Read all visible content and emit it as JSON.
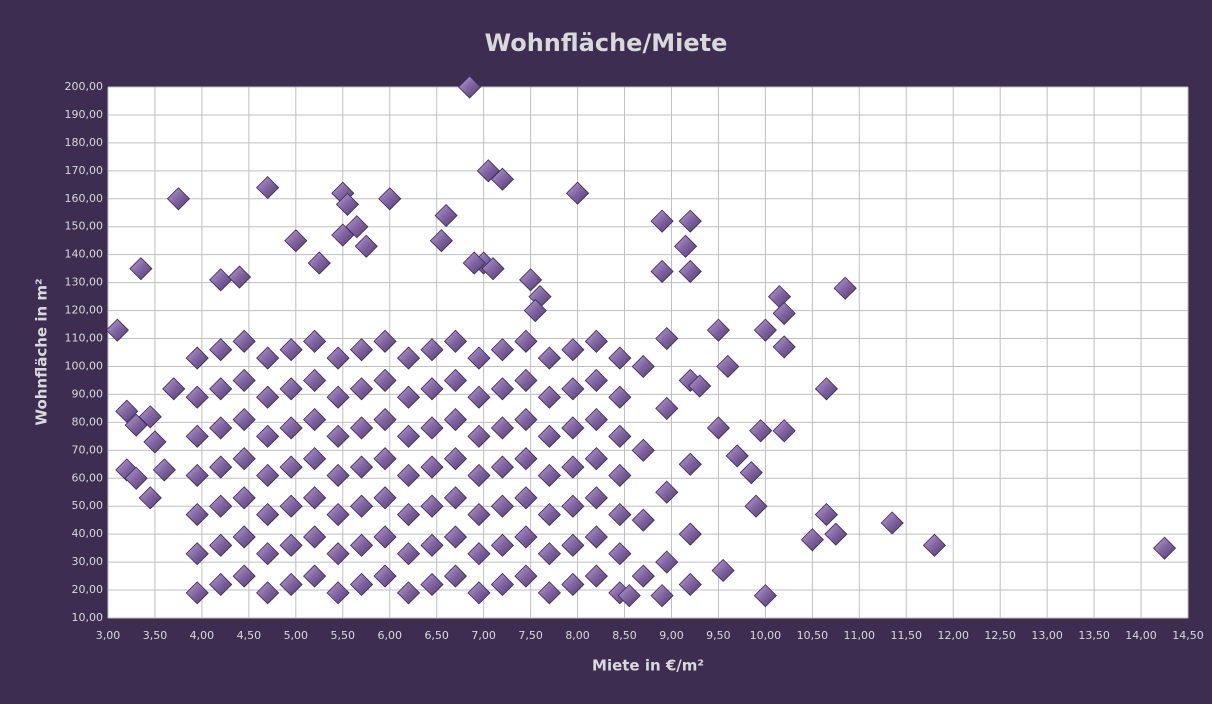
{
  "chart_data": {
    "type": "scatter",
    "title": "Wohnfläche/Miete",
    "x_label": "Miete in €/m²",
    "y_label": "Wohnfläche in m²",
    "color": "#8064a2",
    "grid": true,
    "xlim": [
      3,
      14.5
    ],
    "ylim": [
      10,
      200
    ],
    "xticks": [
      {
        "value": 3,
        "label": "3,00"
      },
      {
        "value": 3.5,
        "label": "3,50"
      },
      {
        "value": 4,
        "label": "4,00"
      },
      {
        "value": 4.5,
        "label": "4,50"
      },
      {
        "value": 5,
        "label": "5,00"
      },
      {
        "value": 5.5,
        "label": "5,50"
      },
      {
        "value": 6,
        "label": "6,00"
      },
      {
        "value": 6.5,
        "label": "6,50"
      },
      {
        "value": 7,
        "label": "7,00"
      },
      {
        "value": 7.5,
        "label": "7,50"
      },
      {
        "value": 8,
        "label": "8,00"
      },
      {
        "value": 8.5,
        "label": "8,50"
      },
      {
        "value": 9,
        "label": "9,00"
      },
      {
        "value": 9.5,
        "label": "9,50"
      },
      {
        "value": 10,
        "label": "10,00"
      },
      {
        "value": 10.5,
        "label": "10,50"
      },
      {
        "value": 11,
        "label": "11,00"
      },
      {
        "value": 11.5,
        "label": "11,50"
      },
      {
        "value": 12,
        "label": "12,00"
      },
      {
        "value": 12.5,
        "label": "12,50"
      },
      {
        "value": 13,
        "label": "13,00"
      },
      {
        "value": 13.5,
        "label": "13,50"
      },
      {
        "value": 14,
        "label": "14,00"
      },
      {
        "value": 14.5,
        "label": "14,50"
      }
    ],
    "yticks": [
      {
        "value": 10,
        "label": "10,00"
      },
      {
        "value": 20,
        "label": "20,00"
      },
      {
        "value": 30,
        "label": "30,00"
      },
      {
        "value": 40,
        "label": "40,00"
      },
      {
        "value": 50,
        "label": "50,00"
      },
      {
        "value": 60,
        "label": "60,00"
      },
      {
        "value": 70,
        "label": "70,00"
      },
      {
        "value": 80,
        "label": "80,00"
      },
      {
        "value": 90,
        "label": "90,00"
      },
      {
        "value": 100,
        "label": "100,00"
      },
      {
        "value": 110,
        "label": "110,00"
      },
      {
        "value": 120,
        "label": "120,00"
      },
      {
        "value": 130,
        "label": "130,00"
      },
      {
        "value": 140,
        "label": "140,00"
      },
      {
        "value": 150,
        "label": "150,00"
      },
      {
        "value": 160,
        "label": "160,00"
      },
      {
        "value": 170,
        "label": "170,00"
      },
      {
        "value": 180,
        "label": "180,00"
      },
      {
        "value": 190,
        "label": "190,00"
      },
      {
        "value": 200,
        "label": "200,00"
      }
    ],
    "x": [
      3.95,
      3.95,
      3.95,
      3.95,
      3.95,
      3.95,
      3.95,
      4.2,
      4.2,
      4.2,
      4.2,
      4.2,
      4.2,
      4.2,
      4.45,
      4.45,
      4.45,
      4.45,
      4.45,
      4.45,
      4.45,
      4.7,
      4.7,
      4.7,
      4.7,
      4.7,
      4.7,
      4.7,
      4.95,
      4.95,
      4.95,
      4.95,
      4.95,
      4.95,
      4.95,
      5.2,
      5.2,
      5.2,
      5.2,
      5.2,
      5.2,
      5.2,
      5.45,
      5.45,
      5.45,
      5.45,
      5.45,
      5.45,
      5.45,
      5.7,
      5.7,
      5.7,
      5.7,
      5.7,
      5.7,
      5.7,
      5.95,
      5.95,
      5.95,
      5.95,
      5.95,
      5.95,
      5.95,
      6.2,
      6.2,
      6.2,
      6.2,
      6.2,
      6.2,
      6.2,
      6.45,
      6.45,
      6.45,
      6.45,
      6.45,
      6.45,
      6.45,
      6.7,
      6.7,
      6.7,
      6.7,
      6.7,
      6.7,
      6.7,
      6.95,
      6.95,
      6.95,
      6.95,
      6.95,
      6.95,
      6.95,
      7.2,
      7.2,
      7.2,
      7.2,
      7.2,
      7.2,
      7.2,
      7.45,
      7.45,
      7.45,
      7.45,
      7.45,
      7.45,
      7.45,
      7.7,
      7.7,
      7.7,
      7.7,
      7.7,
      7.7,
      7.7,
      7.95,
      7.95,
      7.95,
      7.95,
      7.95,
      7.95,
      7.95,
      8.2,
      8.2,
      8.2,
      8.2,
      8.2,
      8.2,
      8.2,
      8.45,
      8.45,
      8.45,
      8.45,
      8.45,
      8.45,
      8.45,
      8.7,
      8.7,
      8.7,
      8.7,
      8.95,
      8.95,
      8.95,
      8.95,
      9.2,
      9.2,
      9.2,
      9.2,
      3.1,
      3.2,
      3.2,
      3.3,
      3.35,
      3.3,
      3.45,
      3.45,
      3.5,
      3.6,
      3.7,
      3.75,
      4.2,
      4.4,
      4.7,
      5.5,
      5.55,
      5.75,
      6.0,
      6.6,
      6.55,
      6.85,
      7.05,
      7.2,
      8.0,
      8.9,
      9.2,
      9.15,
      8.9,
      9.2,
      10.15,
      10.2,
      10.85,
      10.65,
      10.0,
      10.2,
      10.2,
      9.95,
      10.0,
      10.5,
      10.65,
      10.75,
      11.35,
      11.8,
      14.25,
      8.55,
      8.9,
      9.55,
      7.0,
      7.1,
      6.9,
      5.0,
      5.25,
      5.5,
      5.65,
      7.5,
      7.6,
      7.55,
      9.5,
      9.6,
      9.85,
      9.9,
      9.7,
      9.5,
      9.3
    ],
    "values": [
      19,
      33,
      47,
      61,
      75,
      89,
      103,
      22,
      36,
      50,
      64,
      78,
      92,
      106,
      25,
      39,
      53,
      67,
      81,
      95,
      109,
      19,
      33,
      47,
      61,
      75,
      89,
      103,
      22,
      36,
      50,
      64,
      78,
      92,
      106,
      25,
      39,
      53,
      67,
      81,
      95,
      109,
      19,
      33,
      47,
      61,
      75,
      89,
      103,
      22,
      36,
      50,
      64,
      78,
      92,
      106,
      25,
      39,
      53,
      67,
      81,
      95,
      109,
      19,
      33,
      47,
      61,
      75,
      89,
      103,
      22,
      36,
      50,
      64,
      78,
      92,
      106,
      25,
      39,
      53,
      67,
      81,
      95,
      109,
      19,
      33,
      47,
      61,
      75,
      89,
      103,
      22,
      36,
      50,
      64,
      78,
      92,
      106,
      25,
      39,
      53,
      67,
      81,
      95,
      109,
      19,
      33,
      47,
      61,
      75,
      89,
      103,
      22,
      36,
      50,
      64,
      78,
      92,
      106,
      25,
      39,
      53,
      67,
      81,
      95,
      109,
      19,
      33,
      47,
      61,
      75,
      89,
      103,
      25,
      45,
      70,
      100,
      30,
      55,
      85,
      110,
      22,
      40,
      65,
      95,
      113,
      84,
      63,
      79,
      135,
      60,
      82,
      53,
      73,
      63,
      92,
      160,
      131,
      132,
      164,
      162,
      158,
      143,
      160,
      154,
      145,
      200,
      170,
      167,
      162,
      152,
      152,
      143,
      134,
      134,
      125,
      119,
      128,
      92,
      113,
      107,
      77,
      77,
      18,
      38,
      47,
      40,
      44,
      36,
      35,
      18,
      18,
      27,
      137,
      135,
      137,
      145,
      137,
      147,
      150,
      131,
      125,
      120,
      113,
      100,
      62,
      50,
      68,
      78,
      93
    ]
  }
}
